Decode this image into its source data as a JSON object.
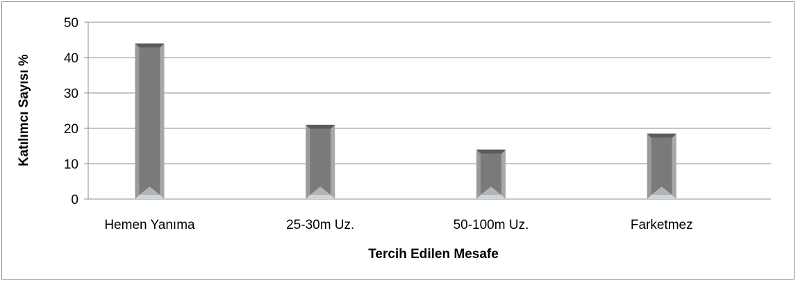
{
  "chart_data": {
    "type": "bar",
    "title": "",
    "xlabel": "Tercih Edilen Mesafe",
    "ylabel": "Katılımcı Sayısı %",
    "categories": [
      "Hemen Yanıma",
      "25-30m Uz.",
      "50-100m Uz.",
      "Farketmez"
    ],
    "values": [
      44,
      21,
      14,
      18.5
    ],
    "ylim": [
      0,
      50
    ],
    "yticks": [
      "0",
      "10",
      "20",
      "30",
      "40",
      "50"
    ],
    "grid": true,
    "legend": "none",
    "colors": {
      "bar_face": "#7a7a7a",
      "bar_edge": "#cdd5dc",
      "bar_dark": "#4a4a4a",
      "grid": "#8c8c8c"
    }
  }
}
